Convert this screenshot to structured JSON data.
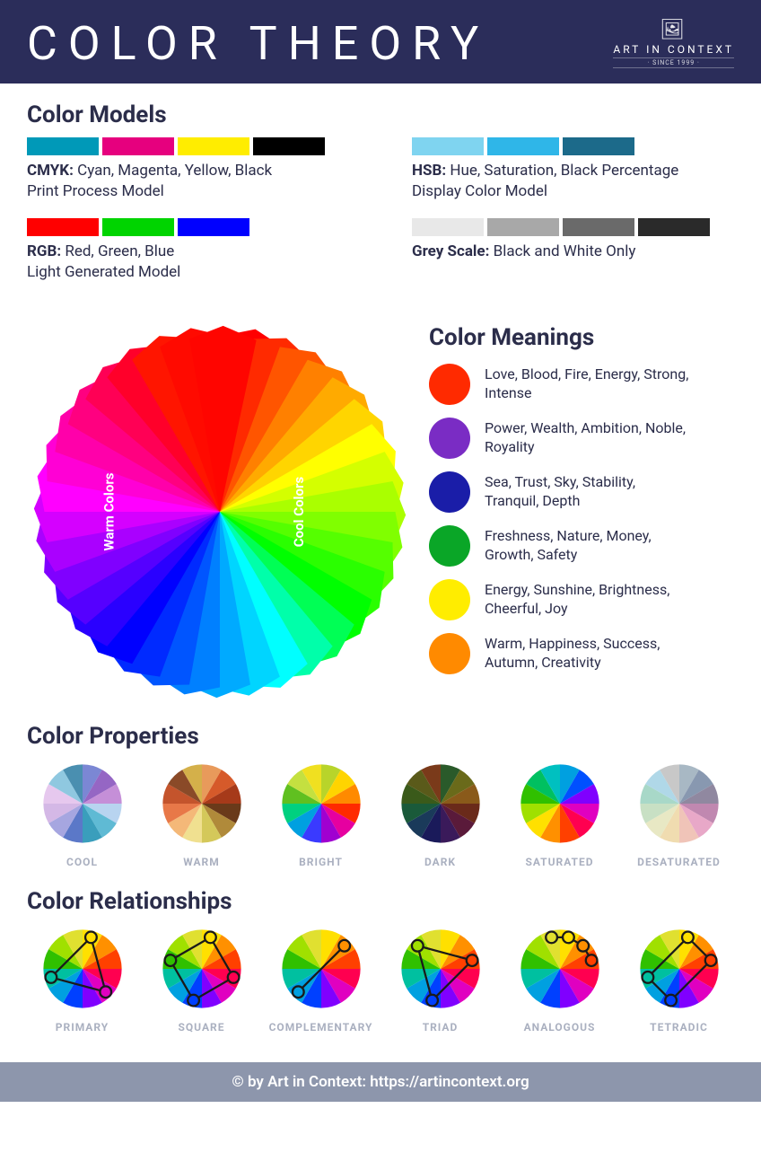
{
  "header": {
    "title": "COLOR THEORY",
    "brand_top": "ART IN CONTEXT",
    "brand_bottom": "· SINCE 1999 ·",
    "bg": "#2b2d5a"
  },
  "color_models": {
    "heading": "Color Models",
    "cmyk": {
      "swatches": [
        "#0099b8",
        "#e6007e",
        "#ffed00",
        "#000000"
      ],
      "label_bold": "CMYK:",
      "label_rest": " Cyan, Magenta, Yellow, Black",
      "sub": "Print Process Model"
    },
    "rgb": {
      "swatches": [
        "#ff0000",
        "#00d400",
        "#0000ff"
      ],
      "label_bold": "RGB:",
      "label_rest": " Red, Green, Blue",
      "sub": "Light Generated Model"
    },
    "hsb": {
      "swatches": [
        "#7fd4f0",
        "#2fb6e8",
        "#1c6a8a"
      ],
      "label_bold": "HSB:",
      "label_rest": " Hue, Saturation, Black Percentage",
      "sub": "Display Color Model"
    },
    "grey": {
      "swatches": [
        "#e8e8e8",
        "#a8a8a8",
        "#6a6a6a",
        "#2a2a2a"
      ],
      "label_bold": "Grey Scale:",
      "label_rest": " Black and White Only",
      "sub": ""
    }
  },
  "big_wheel": {
    "warm_label": "Warm Colors",
    "cool_label": "Cool Colors",
    "segments": 36,
    "colors": [
      "#ff0000",
      "#ff2a00",
      "#ff5500",
      "#ff8000",
      "#ffaa00",
      "#ffd500",
      "#ffff00",
      "#d4ff00",
      "#aaff00",
      "#80ff00",
      "#55ff00",
      "#2aff00",
      "#00ff00",
      "#00ff55",
      "#00ffaa",
      "#00ffff",
      "#00d5ff",
      "#00aaff",
      "#0080ff",
      "#0055ff",
      "#002aff",
      "#0000ff",
      "#2a00ff",
      "#5500ff",
      "#8000ff",
      "#aa00ff",
      "#d500ff",
      "#ff00ff",
      "#ff00d5",
      "#ff00aa",
      "#ff0080",
      "#ff0055",
      "#ff002a",
      "#ff1500",
      "#ff0a00",
      "#ff0500"
    ]
  },
  "color_meanings": {
    "heading": "Color Meanings",
    "items": [
      {
        "color": "#ff2a00",
        "text": "Love, Blood, Fire, Energy, Strong, Intense"
      },
      {
        "color": "#7a2cc4",
        "text": "Power, Wealth, Ambition, Noble, Royality"
      },
      {
        "color": "#1a1da8",
        "text": "Sea, Trust, Sky, Stability, Tranquil, Depth"
      },
      {
        "color": "#0aa627",
        "text": "Freshness, Nature, Money, Growth, Safety"
      },
      {
        "color": "#ffed00",
        "text": "Energy, Sunshine, Brightness, Cheerful, Joy"
      },
      {
        "color": "#ff8a00",
        "text": "Warm, Happiness, Success, Autumn, Creativity"
      }
    ]
  },
  "color_properties": {
    "heading": "Color Properties",
    "items": [
      {
        "label": "COOL",
        "colors": [
          "#7b87d4",
          "#9566c4",
          "#c58fd8",
          "#b8d4f0",
          "#5fbad4",
          "#3a9ebc",
          "#5b78c8",
          "#a6a6e0",
          "#d4b8e6",
          "#e6c8ee",
          "#8fc8e0",
          "#4a8fb0"
        ]
      },
      {
        "label": "WARM",
        "colors": [
          "#e89a5b",
          "#d65a2a",
          "#a63a1a",
          "#6a3a1a",
          "#b08a3a",
          "#d4c85a",
          "#f0e090",
          "#f4b878",
          "#e87848",
          "#c4542c",
          "#8a4a28",
          "#d4b04a"
        ]
      },
      {
        "label": "BRIGHT",
        "colors": [
          "#b8d42a",
          "#ffd400",
          "#ff8a00",
          "#ff2a00",
          "#e600a0",
          "#a000d0",
          "#3a3aff",
          "#00a0e0",
          "#00d080",
          "#60c020",
          "#c4e040",
          "#f0e020"
        ]
      },
      {
        "label": "DARK",
        "colors": [
          "#2a5a2a",
          "#6a6a1a",
          "#8a5a1a",
          "#6a2a1a",
          "#5a1a3a",
          "#3a1a5a",
          "#1a1a5a",
          "#1a3a5a",
          "#1a5a3a",
          "#3a5a1a",
          "#5a5a1a",
          "#7a3a1a"
        ]
      },
      {
        "label": "SATURATED",
        "colors": [
          "#00a0e0",
          "#0050ff",
          "#8000ff",
          "#e000c0",
          "#ff0050",
          "#ff4000",
          "#ff9000",
          "#ffe000",
          "#a0e000",
          "#30c000",
          "#00c060",
          "#00c0c0"
        ]
      },
      {
        "label": "DESATURATED",
        "colors": [
          "#a8b8c4",
          "#8898b0",
          "#9088a0",
          "#c088b0",
          "#e8a8c8",
          "#f0c4b8",
          "#f0dcb0",
          "#e8e8c4",
          "#c8e0c4",
          "#a8d8c8",
          "#b0d8e8",
          "#c8c8c8"
        ]
      }
    ]
  },
  "color_relationships": {
    "heading": "Color Relationships",
    "wheel_colors": [
      "#ffe000",
      "#ff9000",
      "#ff4000",
      "#ff0050",
      "#e000c0",
      "#8000ff",
      "#0040ff",
      "#00a0e0",
      "#00c0a0",
      "#30c000",
      "#a0e000",
      "#e0e030"
    ],
    "items": [
      {
        "label": "PRIMARY",
        "nodes": [
          0,
          4,
          8
        ],
        "closed": true
      },
      {
        "label": "SQUARE",
        "nodes": [
          0,
          3,
          6,
          9
        ],
        "closed": true
      },
      {
        "label": "COMPLEMENTARY",
        "nodes": [
          1,
          7
        ],
        "closed": false
      },
      {
        "label": "TRIAD",
        "nodes": [
          2,
          6,
          10
        ],
        "closed": true
      },
      {
        "label": "ANALOGOUS",
        "nodes": [
          11,
          0,
          1,
          2
        ],
        "closed": false
      },
      {
        "label": "TETRADIC",
        "nodes": [
          0,
          2,
          6,
          8
        ],
        "closed": true
      }
    ]
  },
  "footer": {
    "text": "© by Art in Context: https://artincontext.org",
    "bg": "#8d96ac"
  }
}
